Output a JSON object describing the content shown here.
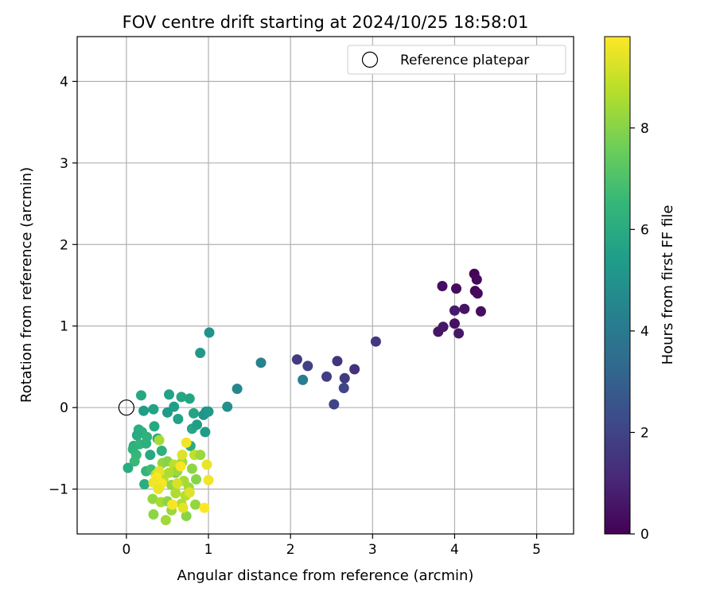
{
  "chart_data": {
    "type": "scatter",
    "title": "FOV centre drift starting at 2024/10/25 18:58:01",
    "xlabel": "Angular distance from reference (arcmin)",
    "ylabel": "Rotation from reference (arcmin)",
    "xlim": [
      -0.6,
      5.45
    ],
    "ylim": [
      -1.55,
      4.55
    ],
    "xticks": [
      "0",
      "1",
      "2",
      "3",
      "4",
      "5"
    ],
    "xtick_values": [
      0,
      1,
      2,
      3,
      4,
      5
    ],
    "yticks": [
      "−1",
      "0",
      "1",
      "2",
      "3",
      "4"
    ],
    "ytick_values": [
      -1,
      0,
      1,
      2,
      3,
      4
    ],
    "grid": true,
    "legend": {
      "position": "top-right",
      "entries": [
        {
          "label": "Reference platepar",
          "marker": "open-circle"
        }
      ]
    },
    "reference_point": {
      "x": 0,
      "y": 0
    },
    "colorbar": {
      "label": "Hours from first FF file",
      "range": [
        0,
        9.8
      ],
      "ticks": [
        "0",
        "2",
        "4",
        "6",
        "8"
      ],
      "tick_values": [
        0,
        2,
        4,
        6,
        8
      ],
      "colormap": "viridis"
    },
    "colors": {
      "viridis": [
        "#440154",
        "#482878",
        "#3e4989",
        "#31688e",
        "#26828e",
        "#1f9e89",
        "#35b779",
        "#6ece58",
        "#b5de2b",
        "#fde725"
      ]
    },
    "points": [
      {
        "x": 4.24,
        "y": 1.64,
        "c": 0.1
      },
      {
        "x": 4.27,
        "y": 1.57,
        "c": 0.2
      },
      {
        "x": 3.85,
        "y": 1.49,
        "c": 0.4
      },
      {
        "x": 4.02,
        "y": 1.46,
        "c": 0.3
      },
      {
        "x": 4.25,
        "y": 1.43,
        "c": 0.15
      },
      {
        "x": 4.28,
        "y": 1.4,
        "c": 0.25
      },
      {
        "x": 4.12,
        "y": 1.21,
        "c": 0.5
      },
      {
        "x": 4.0,
        "y": 1.19,
        "c": 0.7
      },
      {
        "x": 4.32,
        "y": 1.18,
        "c": 0.35
      },
      {
        "x": 4.0,
        "y": 1.03,
        "c": 0.45
      },
      {
        "x": 3.86,
        "y": 0.99,
        "c": 0.6
      },
      {
        "x": 3.8,
        "y": 0.93,
        "c": 0.55
      },
      {
        "x": 4.05,
        "y": 0.91,
        "c": 0.65
      },
      {
        "x": 3.04,
        "y": 0.81,
        "c": 1.6
      },
      {
        "x": 2.08,
        "y": 0.59,
        "c": 1.7
      },
      {
        "x": 2.57,
        "y": 0.57,
        "c": 1.5
      },
      {
        "x": 2.21,
        "y": 0.51,
        "c": 1.9
      },
      {
        "x": 2.78,
        "y": 0.47,
        "c": 1.4
      },
      {
        "x": 2.44,
        "y": 0.38,
        "c": 1.8
      },
      {
        "x": 2.66,
        "y": 0.36,
        "c": 1.7
      },
      {
        "x": 2.65,
        "y": 0.24,
        "c": 2.1
      },
      {
        "x": 2.53,
        "y": 0.04,
        "c": 2.0
      },
      {
        "x": 1.64,
        "y": 0.55,
        "c": 4.3
      },
      {
        "x": 2.15,
        "y": 0.34,
        "c": 4.2
      },
      {
        "x": 1.35,
        "y": 0.23,
        "c": 4.5
      },
      {
        "x": 1.23,
        "y": 0.01,
        "c": 4.9
      },
      {
        "x": 1.01,
        "y": 0.92,
        "c": 5.0
      },
      {
        "x": 0.9,
        "y": 0.67,
        "c": 5.2
      },
      {
        "x": 0.18,
        "y": 0.15,
        "c": 5.9
      },
      {
        "x": 0.52,
        "y": 0.16,
        "c": 5.6
      },
      {
        "x": 0.67,
        "y": 0.13,
        "c": 5.8
      },
      {
        "x": 0.77,
        "y": 0.11,
        "c": 5.7
      },
      {
        "x": 0.58,
        "y": 0.01,
        "c": 5.5
      },
      {
        "x": 0.33,
        "y": -0.02,
        "c": 5.6
      },
      {
        "x": 0.21,
        "y": -0.04,
        "c": 5.4
      },
      {
        "x": 0.5,
        "y": -0.06,
        "c": 5.3
      },
      {
        "x": 0.82,
        "y": -0.07,
        "c": 5.7
      },
      {
        "x": 0.94,
        "y": -0.09,
        "c": 5.1
      },
      {
        "x": 0.97,
        "y": -0.05,
        "c": 5.0
      },
      {
        "x": 1.0,
        "y": -0.05,
        "c": 5.2
      },
      {
        "x": 0.63,
        "y": -0.14,
        "c": 5.6
      },
      {
        "x": 0.8,
        "y": -0.26,
        "c": 5.8
      },
      {
        "x": 0.86,
        "y": -0.21,
        "c": 5.5
      },
      {
        "x": 0.96,
        "y": -0.3,
        "c": 5.4
      },
      {
        "x": 0.34,
        "y": -0.23,
        "c": 5.9
      },
      {
        "x": 0.15,
        "y": -0.27,
        "c": 6.1
      },
      {
        "x": 0.19,
        "y": -0.3,
        "c": 6.2
      },
      {
        "x": 0.13,
        "y": -0.34,
        "c": 6.0
      },
      {
        "x": 0.25,
        "y": -0.36,
        "c": 6.3
      },
      {
        "x": 0.38,
        "y": -0.38,
        "c": 6.0
      },
      {
        "x": 0.09,
        "y": -0.47,
        "c": 6.1
      },
      {
        "x": 0.16,
        "y": -0.45,
        "c": 6.4
      },
      {
        "x": 0.24,
        "y": -0.44,
        "c": 6.2
      },
      {
        "x": 0.08,
        "y": -0.51,
        "c": 6.3
      },
      {
        "x": 0.12,
        "y": -0.58,
        "c": 6.5
      },
      {
        "x": 0.29,
        "y": -0.58,
        "c": 5.9
      },
      {
        "x": 0.43,
        "y": -0.53,
        "c": 6.2
      },
      {
        "x": 0.1,
        "y": -0.66,
        "c": 6.6
      },
      {
        "x": 0.02,
        "y": -0.74,
        "c": 6.0
      },
      {
        "x": 0.24,
        "y": -0.78,
        "c": 6.4
      },
      {
        "x": 0.3,
        "y": -0.76,
        "c": 6.7
      },
      {
        "x": 0.22,
        "y": -0.94,
        "c": 6.1
      },
      {
        "x": 0.36,
        "y": -0.9,
        "c": 6.5
      },
      {
        "x": 0.78,
        "y": -0.47,
        "c": 6.0
      },
      {
        "x": 0.6,
        "y": -0.8,
        "c": 7.6
      },
      {
        "x": 0.4,
        "y": -0.4,
        "c": 8.5
      },
      {
        "x": 0.44,
        "y": -0.68,
        "c": 8.2
      },
      {
        "x": 0.5,
        "y": -0.66,
        "c": 8.0
      },
      {
        "x": 0.58,
        "y": -0.7,
        "c": 8.8
      },
      {
        "x": 0.68,
        "y": -0.67,
        "c": 8.4
      },
      {
        "x": 0.62,
        "y": -0.78,
        "c": 8.3
      },
      {
        "x": 0.52,
        "y": -0.8,
        "c": 8.6
      },
      {
        "x": 0.8,
        "y": -0.75,
        "c": 8.1
      },
      {
        "x": 0.83,
        "y": -0.58,
        "c": 8.9
      },
      {
        "x": 0.9,
        "y": -0.58,
        "c": 8.3
      },
      {
        "x": 0.45,
        "y": -0.88,
        "c": 8.7
      },
      {
        "x": 0.55,
        "y": -0.95,
        "c": 8.2
      },
      {
        "x": 0.7,
        "y": -0.9,
        "c": 8.5
      },
      {
        "x": 0.85,
        "y": -0.88,
        "c": 8.0
      },
      {
        "x": 0.76,
        "y": -0.98,
        "c": 8.4
      },
      {
        "x": 0.32,
        "y": -1.12,
        "c": 8.2
      },
      {
        "x": 0.42,
        "y": -1.16,
        "c": 8.5
      },
      {
        "x": 0.5,
        "y": -1.15,
        "c": 8.1
      },
      {
        "x": 0.55,
        "y": -1.26,
        "c": 8.3
      },
      {
        "x": 0.67,
        "y": -1.18,
        "c": 8.6
      },
      {
        "x": 0.84,
        "y": -1.19,
        "c": 8.2
      },
      {
        "x": 0.73,
        "y": -1.33,
        "c": 8.0
      },
      {
        "x": 0.33,
        "y": -1.31,
        "c": 8.1
      },
      {
        "x": 0.48,
        "y": -1.38,
        "c": 8.4
      },
      {
        "x": 0.72,
        "y": -1.08,
        "c": 8.7
      },
      {
        "x": 0.6,
        "y": -1.05,
        "c": 8.6
      },
      {
        "x": 0.36,
        "y": -0.82,
        "c": 9.0
      },
      {
        "x": 0.73,
        "y": -0.43,
        "c": 9.6
      },
      {
        "x": 0.68,
        "y": -0.58,
        "c": 9.3
      },
      {
        "x": 0.98,
        "y": -0.7,
        "c": 9.5
      },
      {
        "x": 0.66,
        "y": -0.72,
        "c": 9.7
      },
      {
        "x": 0.4,
        "y": -0.78,
        "c": 9.4
      },
      {
        "x": 0.37,
        "y": -0.86,
        "c": 9.8
      },
      {
        "x": 0.33,
        "y": -0.92,
        "c": 9.6
      },
      {
        "x": 0.43,
        "y": -0.93,
        "c": 9.7
      },
      {
        "x": 0.39,
        "y": -1.0,
        "c": 9.5
      },
      {
        "x": 1.0,
        "y": -0.89,
        "c": 9.6
      },
      {
        "x": 0.77,
        "y": -1.04,
        "c": 9.3
      },
      {
        "x": 0.56,
        "y": -1.19,
        "c": 9.7
      },
      {
        "x": 0.69,
        "y": -1.23,
        "c": 9.4
      },
      {
        "x": 0.95,
        "y": -1.23,
        "c": 9.8
      },
      {
        "x": 0.62,
        "y": -0.93,
        "c": 9.2
      }
    ]
  }
}
